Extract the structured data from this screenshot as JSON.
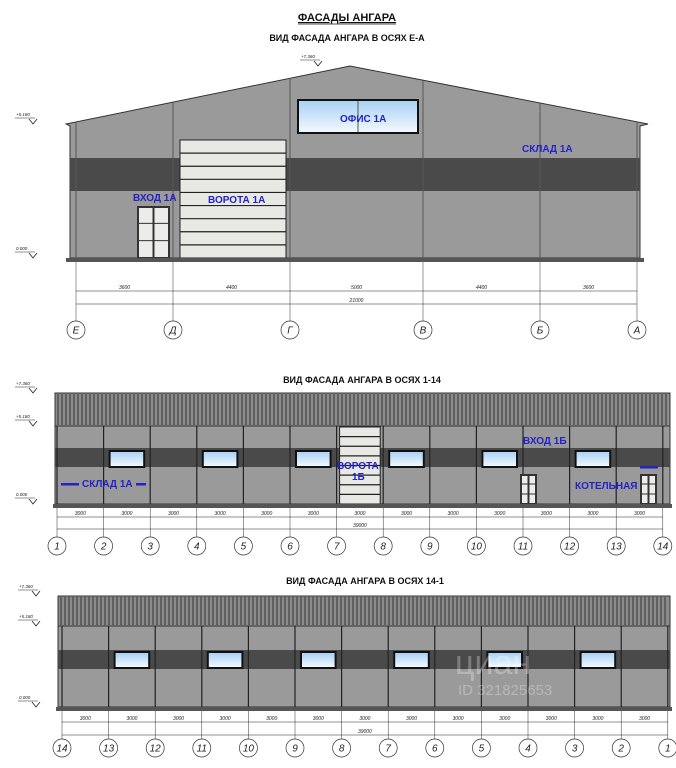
{
  "title": "ФАСАДЫ АНГАРА",
  "colors": {
    "wall": "#9a9a9a",
    "band": "#4a4a4a",
    "label": "#2323c8",
    "window": "#cfe6fa",
    "gate": "#e8e8e4"
  },
  "facade_ea": {
    "title": "ВИД ФАСАДА АНГАРА В ОСЯХ Е-А",
    "levels": [
      "+7.360",
      "+5.180",
      "0.000"
    ],
    "axes": [
      "Е",
      "Д",
      "Г",
      "В",
      "Б",
      "А"
    ],
    "spans": [
      "3600",
      "4400",
      "5000",
      "4400",
      "3600"
    ],
    "total": "21000",
    "labels": {
      "office": "ОФИС 1А",
      "warehouse": "СКЛАД 1А",
      "entrance": "ВХОД 1А",
      "gate": "ВОРОТА 1А"
    }
  },
  "facade_1_14": {
    "title": "ВИД ФАСАДА АНГАРА В ОСЯХ 1-14",
    "levels": [
      "+7.360",
      "+5.180",
      "0.000"
    ],
    "axes": [
      "1",
      "2",
      "3",
      "4",
      "5",
      "6",
      "7",
      "8",
      "9",
      "10",
      "11",
      "12",
      "13",
      "14"
    ],
    "span": "3000",
    "total": "39000",
    "labels": {
      "warehouse": "СКЛАД 1А",
      "gate_line1": "ВОРОТА",
      "gate_line2": "1Б",
      "entrance": "ВХОД 1Б",
      "boiler": "КОТЕЛЬНАЯ"
    }
  },
  "facade_14_1": {
    "title": "ВИД ФАСАДА АНГАРА В ОСЯХ 14-1",
    "levels": [
      "+7.360",
      "+5.180",
      "0.000"
    ],
    "axes": [
      "14",
      "13",
      "12",
      "11",
      "10",
      "9",
      "8",
      "7",
      "6",
      "5",
      "4",
      "3",
      "2",
      "1"
    ],
    "span": "3000",
    "total": "39000"
  },
  "watermark": {
    "brand": "циан",
    "id": "ID 321825653"
  }
}
